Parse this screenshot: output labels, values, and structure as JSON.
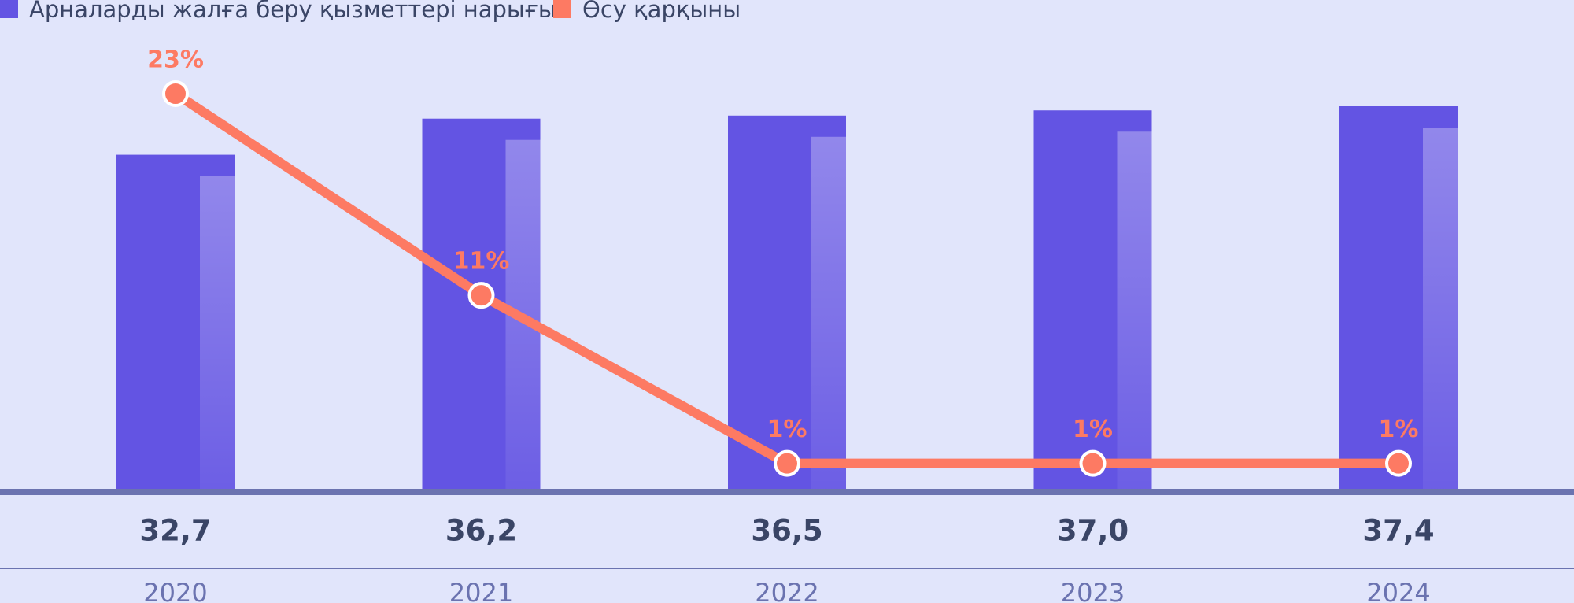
{
  "chart_data": {
    "type": "combo",
    "categories": [
      "2020",
      "2021",
      "2022",
      "2023",
      "2024"
    ],
    "series": [
      {
        "name": "Арналарды жалға беру қызметтері нарығы",
        "type": "bar",
        "color": "#6354e3",
        "values": [
          32.7,
          36.2,
          36.5,
          37.0,
          37.4
        ],
        "value_labels": [
          "32,7",
          "36,2",
          "36,5",
          "37,0",
          "37,4"
        ]
      },
      {
        "name": "Өсу қарқыны",
        "type": "line",
        "color": "#fd7a63",
        "values": [
          23,
          11,
          1,
          1,
          1
        ],
        "value_labels": [
          "23%",
          "11%",
          "1%",
          "1%",
          "1%"
        ]
      }
    ]
  }
}
